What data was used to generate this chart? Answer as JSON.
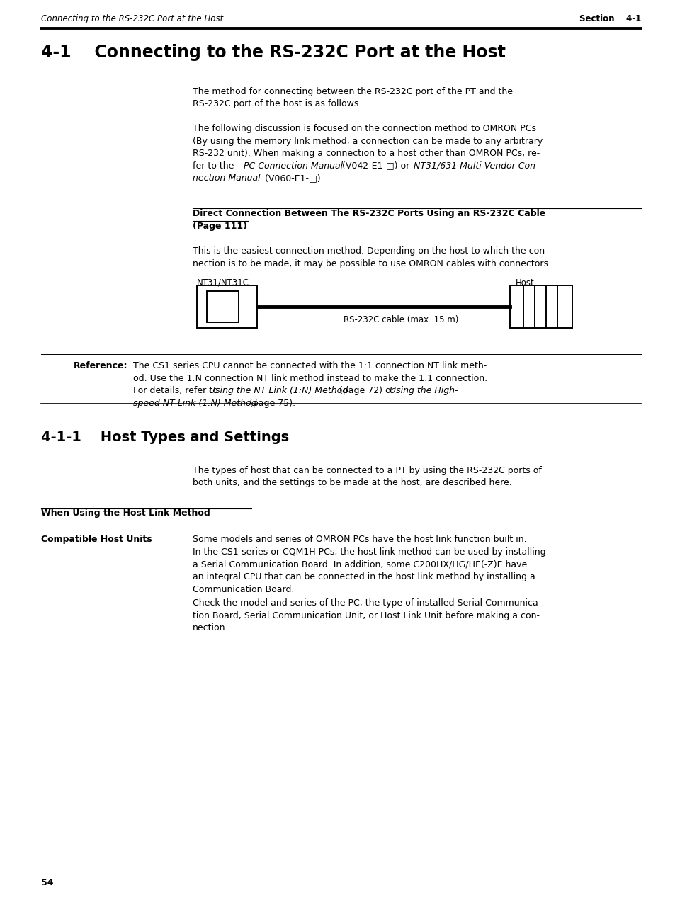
{
  "bg_color": "#ffffff",
  "header_italic": "Connecting to the RS-232C Port at the Host",
  "header_section": "Section    4-1",
  "title": "4-1    Connecting to the RS-232C Port at the Host",
  "para1": "The method for connecting between the RS-232C port of the PT and the\nRS-232C port of the host is as follows.",
  "para2_line1": "The following discussion is focused on the connection method to OMRON PCs",
  "para2_line2": "(By using the memory link method, a connection can be made to any arbitrary",
  "para2_line3": "RS-232 unit). When making a connection to a host other than OMRON PCs, re-",
  "para2_line4a": "fer to the ",
  "para2_line4b": "PC Connection Manual",
  "para2_line4c": " (V042-E1-□) or ",
  "para2_line4d": "NT31/631 Multi Vendor Con-",
  "para2_line5a": "nection Manual",
  "para2_line5b": " (V060-E1-□).",
  "direct_line1": "Direct Connection Between The RS-232C Ports Using an RS-232C Cable",
  "direct_line2": "(Page 111)",
  "para3_line1": "This is the easiest connection method. Depending on the host to which the con-",
  "para3_line2": "nection is to be made, it may be possible to use OMRON cables with connectors.",
  "diagram_label_left": "NT31/NT31C",
  "diagram_label_right": "Host",
  "diagram_cable_label": "RS-232C cable (max. 15 m)",
  "reference_bold": "Reference:",
  "ref_line1": "The CS1 series CPU cannot be connected with the 1:1 connection NT link meth-",
  "ref_line2": "od. Use the 1:N connection NT link method instead to make the 1:1 connection.",
  "ref_line3a": "For details, refer to ",
  "ref_line3b": "Using the NT Link (1:N) Method",
  "ref_line3c": " (page 72) or ",
  "ref_line3d": "Using the High-",
  "ref_line4a": "speed NT Link (1:N) Method",
  "ref_line4b": " (page 75).",
  "section2_title": "4-1-1    Host Types and Settings",
  "section2_para1": "The types of host that can be connected to a PT by using the RS-232C ports of",
  "section2_para2": "both units, and the settings to be made at the host, are described here.",
  "when_using": "When Using the Host Link Method",
  "compat_bold": "Compatible Host Units",
  "compat_text1": "Some models and series of OMRON PCs have the host link function built in.",
  "compat_text2a": "In the CS1-series or CQM1H PCs, the host link method can be used by installing",
  "compat_text2b": "a Serial Communication Board. In addition, some C200HX/HG/HE(-Z)E have",
  "compat_text2c": "an integral CPU that can be connected in the host link method by installing a",
  "compat_text2d": "Communication Board.",
  "compat_text3a": "Check the model and series of the PC, the type of installed Serial Communica-",
  "compat_text3b": "tion Board, Serial Communication Unit, or Host Link Unit before making a con-",
  "compat_text3c": "nection.",
  "page_number": "54",
  "fs_body": 9.0,
  "fs_header": 8.5,
  "fs_title1": 17.0,
  "fs_title2": 14.0,
  "fs_diagram": 8.5
}
